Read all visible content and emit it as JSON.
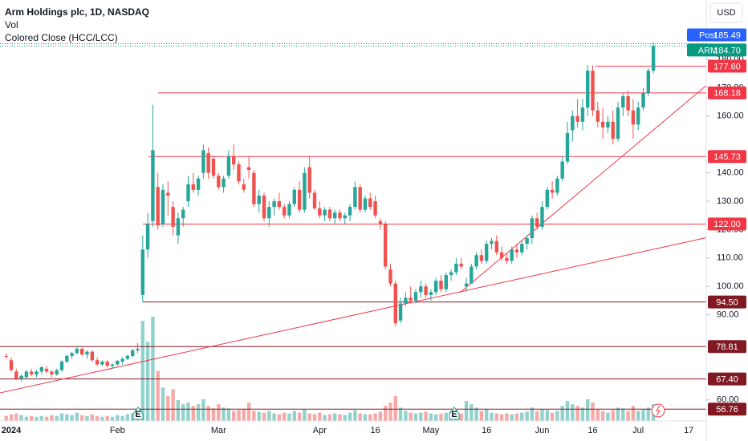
{
  "chart_data": {
    "type": "candlestick",
    "title": "Arm Holdings plc, 1D, NASDAQ",
    "indicators": [
      "Vol",
      "Colored Close (HCC/LCC)"
    ],
    "currency": "USD",
    "earnings_label": "E",
    "up_color": "#26a69a",
    "down_color": "#ef5350",
    "ylim": [
      52.6,
      200.9
    ],
    "yticks": [
      {
        "value": 60,
        "label": "60.00"
      },
      {
        "value": 90,
        "label": "90.00"
      },
      {
        "value": 100,
        "label": "100.00"
      },
      {
        "value": 110,
        "label": "110.00"
      },
      {
        "value": 120,
        "label": "120.00"
      },
      {
        "value": 130,
        "label": "130.00"
      },
      {
        "value": 140,
        "label": "140.00"
      },
      {
        "value": 160,
        "label": "160.00"
      },
      {
        "value": 170,
        "label": "170.00"
      },
      {
        "value": 180,
        "label": "180.00"
      }
    ],
    "post": {
      "label": "Post",
      "value": 185.49,
      "color": "#2962ff"
    },
    "last": {
      "label": "ARM",
      "value": {
        "value": 184.7,
        "label": "184.70"
      },
      "color": "#089981"
    },
    "levels": [
      {
        "value": 177.6,
        "label": "177.60",
        "color": "#f23645"
      },
      {
        "value": 168.18,
        "label": "168.18",
        "color": "#f23645"
      },
      {
        "value": 145.73,
        "label": "145.73",
        "color": "#f23645"
      },
      {
        "value": 122,
        "label": "122.00",
        "color": "#f23645"
      },
      {
        "value": 94.5,
        "label": "94.50",
        "color": "#801922"
      },
      {
        "value": 78.81,
        "label": "78.81",
        "color": "#801922"
      },
      {
        "value": 67.4,
        "label": "67.40",
        "color": "#801922"
      },
      {
        "value": 56.76,
        "label": "56.76",
        "color": "#801922"
      }
    ],
    "categories": [
      null,
      "2024",
      null,
      null,
      null,
      null,
      null,
      null,
      null,
      null,
      null,
      null,
      null,
      null,
      null,
      null,
      null,
      null,
      null,
      null,
      null,
      null,
      "Feb",
      null,
      null,
      null,
      null,
      null,
      null,
      null,
      null,
      null,
      null,
      null,
      null,
      null,
      null,
      null,
      null,
      null,
      null,
      null,
      "Mar",
      null,
      null,
      null,
      null,
      null,
      null,
      null,
      null,
      null,
      null,
      null,
      null,
      null,
      null,
      null,
      null,
      null,
      null,
      null,
      "Apr",
      null,
      null,
      null,
      null,
      null,
      null,
      null,
      null,
      null,
      null,
      "16",
      null,
      null,
      null,
      null,
      null,
      null,
      null,
      null,
      null,
      null,
      "May",
      null,
      null,
      null,
      null,
      null,
      null,
      null,
      null,
      null,
      null,
      "16",
      null,
      null,
      null,
      null,
      null,
      null,
      null,
      null,
      null,
      null,
      "Jun",
      null,
      null,
      null,
      null,
      null,
      null,
      null,
      null,
      null,
      "16",
      null,
      null,
      null,
      null,
      null,
      null,
      null,
      null,
      "Jul",
      null,
      null,
      null,
      null,
      null,
      null,
      null,
      null,
      null,
      "17"
    ],
    "ohlc": [
      [
        75.5,
        76.5,
        74.5,
        75.2
      ],
      [
        74,
        75,
        70,
        70.5
      ],
      [
        70,
        71,
        67,
        67.5
      ],
      [
        67.5,
        69,
        66.5,
        68.5
      ],
      [
        68,
        70.5,
        67.5,
        70
      ],
      [
        70,
        71,
        68.5,
        69
      ],
      [
        69,
        70.5,
        68,
        70
      ],
      [
        70,
        72,
        69,
        71.5
      ],
      [
        71,
        72,
        69.5,
        70
      ],
      [
        70,
        70.5,
        68,
        69
      ],
      [
        69,
        71,
        68.5,
        70.5
      ],
      [
        70.5,
        74,
        70,
        73.5
      ],
      [
        73.5,
        76,
        73,
        75.5
      ],
      [
        75.5,
        77,
        74.5,
        76.5
      ],
      [
        76.5,
        79,
        76,
        78
      ],
      [
        78,
        78.5,
        75.5,
        76
      ],
      [
        76,
        77.5,
        74.5,
        77
      ],
      [
        77,
        77.5,
        73.5,
        74
      ],
      [
        74,
        75,
        72,
        72.5
      ],
      [
        72.5,
        74,
        72,
        73.5
      ],
      [
        73.5,
        74,
        71.5,
        72
      ],
      [
        72,
        73,
        71,
        72.5
      ],
      [
        72.5,
        74,
        72,
        73.8
      ],
      [
        73.5,
        75,
        72.5,
        74.5
      ],
      [
        74.5,
        76,
        74,
        75.5
      ],
      [
        75.5,
        78,
        75,
        77.5
      ],
      [
        77.5,
        80,
        76.5,
        78
      ],
      [
        97,
        118,
        94.5,
        113
      ],
      [
        113,
        126,
        110,
        122
      ],
      [
        123,
        164,
        121,
        148
      ],
      [
        135,
        140,
        120,
        121.5
      ],
      [
        122,
        136,
        121,
        134
      ],
      [
        133,
        137,
        125,
        132
      ],
      [
        128,
        130,
        118,
        121
      ],
      [
        118,
        126,
        115,
        124
      ],
      [
        124,
        128,
        121,
        127
      ],
      [
        130,
        139,
        128,
        136
      ],
      [
        136,
        140,
        133,
        134
      ],
      [
        134,
        139,
        132,
        138
      ],
      [
        140,
        150,
        138,
        148
      ],
      [
        147,
        149,
        138,
        140
      ],
      [
        145,
        146,
        138,
        139
      ],
      [
        139,
        140,
        134,
        135
      ],
      [
        135,
        139,
        133,
        138
      ],
      [
        139,
        148,
        138,
        146
      ],
      [
        146,
        150,
        141,
        143
      ],
      [
        143,
        144,
        136,
        137
      ],
      [
        136,
        138,
        133,
        134
      ],
      [
        142,
        146,
        138,
        141
      ],
      [
        140,
        141,
        128,
        129
      ],
      [
        129,
        134,
        126,
        132
      ],
      [
        132,
        133,
        123,
        124
      ],
      [
        124,
        130,
        121,
        128
      ],
      [
        128,
        131,
        125,
        130
      ],
      [
        130,
        133,
        127,
        128
      ],
      [
        128,
        129,
        124,
        125
      ],
      [
        125,
        130,
        124,
        129
      ],
      [
        129,
        135,
        128,
        134
      ],
      [
        134,
        137,
        126,
        127
      ],
      [
        127,
        142,
        126,
        140
      ],
      [
        142,
        146,
        131,
        133
      ],
      [
        133,
        134,
        127,
        127.5
      ],
      [
        127.5,
        130,
        124,
        125
      ],
      [
        125,
        128,
        123,
        127
      ],
      [
        127,
        128,
        123,
        124
      ],
      [
        124,
        127,
        122,
        126
      ],
      [
        126,
        127,
        123,
        124
      ],
      [
        124,
        126,
        122,
        125
      ],
      [
        125,
        129,
        123,
        128
      ],
      [
        128,
        137,
        127,
        135
      ],
      [
        135,
        136,
        126,
        127
      ],
      [
        127,
        132,
        126,
        131
      ],
      [
        131,
        133,
        127,
        128
      ],
      [
        130,
        132,
        124,
        125
      ],
      [
        123,
        124,
        120,
        122
      ],
      [
        122,
        123,
        106,
        107
      ],
      [
        106,
        108,
        100,
        101
      ],
      [
        101,
        102,
        86,
        87
      ],
      [
        88,
        96,
        87,
        94
      ],
      [
        94,
        98,
        93,
        96
      ],
      [
        96,
        100,
        94,
        95
      ],
      [
        95,
        99,
        94,
        98
      ],
      [
        98,
        102,
        96,
        100
      ],
      [
        100,
        101,
        96,
        97
      ],
      [
        97,
        99,
        95,
        98
      ],
      [
        98,
        103,
        97,
        102
      ],
      [
        102,
        104,
        98,
        99
      ],
      [
        99,
        105,
        98,
        104
      ],
      [
        104,
        106,
        102,
        105
      ],
      [
        105,
        110,
        104,
        108
      ],
      [
        108,
        110,
        106,
        107
      ],
      [
        100,
        103,
        98,
        101
      ],
      [
        101,
        108,
        101,
        107
      ],
      [
        107,
        112,
        106,
        111
      ],
      [
        111,
        113,
        108,
        109
      ],
      [
        109,
        116,
        108,
        115
      ],
      [
        115,
        117,
        113,
        116
      ],
      [
        116,
        118,
        111,
        112
      ],
      [
        112,
        114,
        109,
        110
      ],
      [
        110,
        112,
        108,
        109
      ],
      [
        109,
        114,
        108,
        113
      ],
      [
        113,
        115,
        110,
        112
      ],
      [
        112,
        116,
        111,
        115
      ],
      [
        115,
        118,
        113,
        117
      ],
      [
        117,
        125,
        115,
        124
      ],
      [
        124,
        126,
        120,
        121
      ],
      [
        121,
        130,
        120,
        128
      ],
      [
        128,
        135,
        127,
        134
      ],
      [
        134,
        137,
        131,
        133
      ],
      [
        133,
        139,
        132,
        138
      ],
      [
        138,
        146,
        137,
        144
      ],
      [
        144,
        158,
        143,
        154
      ],
      [
        155,
        162,
        151,
        160
      ],
      [
        160,
        166,
        156,
        158
      ],
      [
        158,
        166,
        155,
        163
      ],
      [
        163,
        178,
        160,
        176
      ],
      [
        176,
        178,
        160,
        162
      ],
      [
        162,
        165,
        156,
        158
      ],
      [
        158,
        163,
        152,
        156
      ],
      [
        156,
        160,
        154,
        158
      ],
      [
        158,
        162,
        150,
        152
      ],
      [
        152,
        165,
        151,
        163
      ],
      [
        163,
        168,
        160,
        167
      ],
      [
        167,
        169,
        160,
        162
      ],
      [
        162,
        166,
        152,
        157
      ],
      [
        157,
        165,
        155,
        163
      ],
      [
        163,
        170,
        162,
        168
      ],
      [
        168,
        177,
        167,
        176
      ],
      [
        176,
        186,
        175,
        184.7
      ],
      null,
      null,
      null,
      null,
      null,
      null,
      null
    ],
    "volume": [
      6,
      8,
      9,
      7,
      5,
      6,
      5,
      6,
      5,
      7,
      6,
      9,
      8,
      7,
      10,
      7,
      6,
      8,
      6,
      5,
      6,
      5,
      7,
      6,
      8,
      9,
      14,
      120,
      95,
      125,
      60,
      40,
      30,
      38,
      25,
      20,
      22,
      18,
      20,
      26,
      18,
      15,
      20,
      16,
      15,
      12,
      13,
      14,
      22,
      12,
      11,
      10,
      12,
      9,
      8,
      10,
      9,
      12,
      10,
      14,
      9,
      8,
      10,
      7,
      8,
      9,
      8,
      7,
      10,
      13,
      9,
      8,
      8,
      9,
      11,
      18,
      22,
      30,
      16,
      12,
      10,
      9,
      10,
      11,
      9,
      8,
      9,
      10,
      12,
      11,
      9,
      24,
      20,
      16,
      12,
      14,
      10,
      9,
      8,
      9,
      8,
      9,
      10,
      11,
      16,
      12,
      14,
      13,
      10,
      12,
      18,
      24,
      20,
      18,
      16,
      26,
      22,
      14,
      12,
      10,
      13,
      16,
      15,
      12,
      18,
      12,
      14,
      16,
      20,
      null,
      null,
      null,
      null,
      null,
      null,
      null
    ]
  }
}
